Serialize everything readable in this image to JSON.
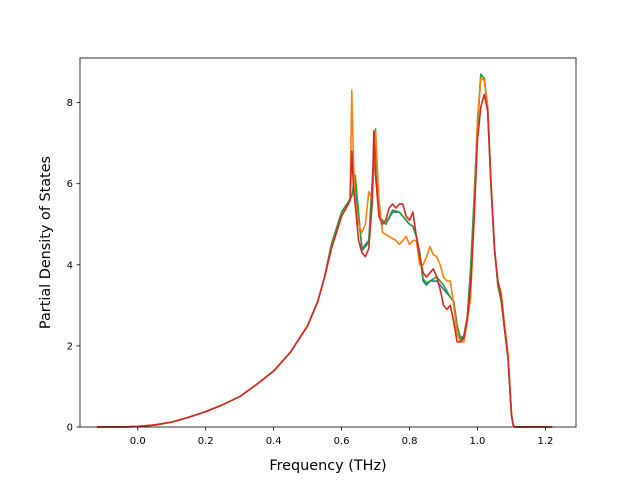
{
  "chart_data": {
    "type": "line",
    "title": "",
    "xlabel": "Frequency (THz)",
    "ylabel": "Partial Density of States",
    "xlim": [
      -0.17,
      1.29
    ],
    "ylim": [
      0,
      9.1
    ],
    "xticks": [
      0.0,
      0.2,
      0.4,
      0.6,
      0.8,
      1.0,
      1.2
    ],
    "xtick_labels": [
      "0.0",
      "0.2",
      "0.4",
      "0.6",
      "0.8",
      "1.0",
      "1.2"
    ],
    "yticks": [
      0,
      2,
      4,
      6,
      8
    ],
    "ytick_labels": [
      "0",
      "2",
      "4",
      "6",
      "8"
    ],
    "grid": false,
    "legend": "none",
    "series": [
      {
        "color": "#1f77b4",
        "x": [
          -0.12,
          -0.05,
          0.0,
          0.05,
          0.1,
          0.15,
          0.2,
          0.25,
          0.3,
          0.35,
          0.4,
          0.45,
          0.5,
          0.53,
          0.55,
          0.57,
          0.6,
          0.62,
          0.63,
          0.64,
          0.66,
          0.68,
          0.69,
          0.7,
          0.71,
          0.73,
          0.75,
          0.77,
          0.79,
          0.8,
          0.81,
          0.82,
          0.83,
          0.84,
          0.85,
          0.86,
          0.88,
          0.9,
          0.92,
          0.93,
          0.94,
          0.95,
          0.96,
          0.97,
          0.98,
          0.99,
          1.0,
          1.01,
          1.02,
          1.03,
          1.04,
          1.05,
          1.06,
          1.07,
          1.08,
          1.09,
          1.1,
          1.105,
          1.11,
          1.15,
          1.22
        ],
        "y": [
          0,
          0,
          0.01,
          0.05,
          0.12,
          0.24,
          0.38,
          0.55,
          0.75,
          1.05,
          1.38,
          1.85,
          2.5,
          3.1,
          3.7,
          4.5,
          5.3,
          5.55,
          5.7,
          6.0,
          4.4,
          4.6,
          6.0,
          7.2,
          5.2,
          5.0,
          5.3,
          5.3,
          5.1,
          5.0,
          4.95,
          4.7,
          4.3,
          3.6,
          3.5,
          3.6,
          3.6,
          3.4,
          3.2,
          3.1,
          2.5,
          2.2,
          2.25,
          2.7,
          3.9,
          5.6,
          7.4,
          8.7,
          8.6,
          7.8,
          5.9,
          4.4,
          3.5,
          3.1,
          2.4,
          1.7,
          0.3,
          0.05,
          0.0,
          0.0,
          0.0
        ]
      },
      {
        "color": "#2ca02c",
        "x": [
          -0.12,
          -0.05,
          0.0,
          0.05,
          0.1,
          0.15,
          0.2,
          0.25,
          0.3,
          0.35,
          0.4,
          0.45,
          0.5,
          0.53,
          0.55,
          0.57,
          0.6,
          0.62,
          0.63,
          0.64,
          0.66,
          0.68,
          0.69,
          0.7,
          0.71,
          0.73,
          0.75,
          0.77,
          0.79,
          0.8,
          0.81,
          0.82,
          0.83,
          0.84,
          0.85,
          0.86,
          0.88,
          0.9,
          0.92,
          0.93,
          0.94,
          0.95,
          0.96,
          0.97,
          0.98,
          0.99,
          1.0,
          1.01,
          1.02,
          1.03,
          1.04,
          1.05,
          1.06,
          1.07,
          1.08,
          1.09,
          1.1,
          1.105,
          1.11,
          1.15,
          1.22
        ],
        "y": [
          0,
          0,
          0.01,
          0.05,
          0.12,
          0.24,
          0.38,
          0.55,
          0.75,
          1.05,
          1.38,
          1.85,
          2.5,
          3.1,
          3.7,
          4.5,
          5.3,
          5.55,
          5.7,
          6.2,
          4.35,
          4.55,
          6.0,
          7.35,
          5.2,
          5.0,
          5.35,
          5.3,
          5.1,
          5.0,
          4.95,
          4.7,
          4.3,
          3.65,
          3.55,
          3.6,
          3.7,
          3.5,
          3.2,
          3.1,
          2.5,
          2.15,
          2.25,
          2.7,
          3.9,
          5.6,
          7.5,
          8.7,
          8.6,
          7.9,
          5.9,
          4.4,
          3.5,
          3.1,
          2.4,
          1.7,
          0.3,
          0.05,
          0.0,
          0.0,
          0.0
        ]
      },
      {
        "color": "#ff7f0e",
        "x": [
          -0.12,
          -0.05,
          0.0,
          0.05,
          0.1,
          0.15,
          0.2,
          0.25,
          0.3,
          0.35,
          0.4,
          0.45,
          0.5,
          0.53,
          0.55,
          0.57,
          0.6,
          0.62,
          0.625,
          0.63,
          0.635,
          0.64,
          0.65,
          0.66,
          0.67,
          0.68,
          0.69,
          0.7,
          0.71,
          0.72,
          0.74,
          0.76,
          0.77,
          0.78,
          0.79,
          0.8,
          0.81,
          0.82,
          0.83,
          0.84,
          0.85,
          0.86,
          0.87,
          0.88,
          0.89,
          0.9,
          0.91,
          0.92,
          0.93,
          0.94,
          0.95,
          0.96,
          0.97,
          0.98,
          0.99,
          1.0,
          1.01,
          1.02,
          1.03,
          1.04,
          1.05,
          1.06,
          1.07,
          1.08,
          1.09,
          1.1,
          1.105,
          1.11,
          1.15,
          1.22
        ],
        "y": [
          0,
          0,
          0.01,
          0.05,
          0.12,
          0.24,
          0.38,
          0.55,
          0.75,
          1.05,
          1.38,
          1.85,
          2.5,
          3.1,
          3.7,
          4.4,
          5.2,
          5.5,
          5.6,
          8.3,
          6.5,
          5.6,
          5.0,
          4.8,
          5.0,
          5.8,
          5.6,
          7.3,
          5.6,
          4.8,
          4.7,
          4.6,
          4.5,
          4.6,
          4.7,
          4.5,
          4.6,
          4.6,
          4.0,
          4.0,
          4.2,
          4.45,
          4.25,
          4.2,
          4.0,
          3.7,
          3.6,
          3.6,
          3.0,
          2.3,
          2.1,
          2.1,
          2.6,
          3.2,
          5.2,
          7.6,
          8.6,
          8.55,
          7.9,
          6.0,
          4.4,
          3.6,
          3.3,
          2.5,
          1.8,
          0.35,
          0.05,
          0.0,
          0.0,
          0.0
        ]
      },
      {
        "color": "#d62728",
        "x": [
          -0.12,
          -0.05,
          0.0,
          0.05,
          0.1,
          0.15,
          0.2,
          0.25,
          0.3,
          0.35,
          0.4,
          0.45,
          0.5,
          0.53,
          0.55,
          0.57,
          0.6,
          0.62,
          0.625,
          0.63,
          0.635,
          0.64,
          0.65,
          0.66,
          0.67,
          0.68,
          0.69,
          0.695,
          0.7,
          0.71,
          0.72,
          0.73,
          0.74,
          0.75,
          0.76,
          0.77,
          0.78,
          0.79,
          0.8,
          0.81,
          0.82,
          0.83,
          0.84,
          0.85,
          0.86,
          0.87,
          0.88,
          0.89,
          0.9,
          0.91,
          0.92,
          0.93,
          0.94,
          0.95,
          0.96,
          0.97,
          0.98,
          0.99,
          1.0,
          1.01,
          1.02,
          1.03,
          1.04,
          1.05,
          1.06,
          1.07,
          1.08,
          1.09,
          1.1,
          1.105,
          1.11,
          1.15,
          1.22
        ],
        "y": [
          0,
          0,
          0.01,
          0.05,
          0.12,
          0.24,
          0.38,
          0.55,
          0.75,
          1.05,
          1.38,
          1.85,
          2.5,
          3.1,
          3.7,
          4.4,
          5.2,
          5.5,
          5.6,
          6.8,
          5.9,
          5.5,
          4.6,
          4.3,
          4.2,
          4.4,
          5.5,
          7.3,
          6.2,
          5.2,
          5.0,
          5.1,
          5.4,
          5.5,
          5.4,
          5.5,
          5.5,
          5.2,
          5.1,
          5.3,
          4.7,
          4.2,
          3.8,
          3.7,
          3.8,
          3.9,
          3.7,
          3.4,
          3.0,
          2.9,
          3.0,
          2.6,
          2.1,
          2.1,
          2.2,
          2.7,
          3.5,
          5.1,
          7.1,
          7.9,
          8.2,
          7.8,
          6.0,
          4.4,
          3.6,
          3.2,
          2.4,
          1.7,
          0.3,
          0.05,
          0.0,
          0.0,
          0.0
        ]
      }
    ]
  }
}
